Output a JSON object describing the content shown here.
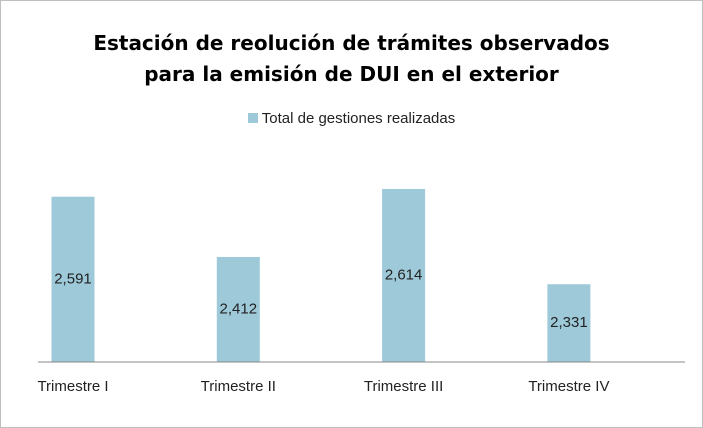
{
  "chart_data": {
    "type": "bar",
    "title": "Estación de reolución de trámites observados para la emisión de DUI en el exterior",
    "categories": [
      "Trimestre I",
      "Trimestre II",
      "Trimestre III",
      "Trimestre IV"
    ],
    "series": [
      {
        "name": "Total de gestiones realizadas",
        "color": "#9dc9d8",
        "values": [
          2591,
          2412,
          2614,
          2331
        ],
        "value_labels": [
          "2,591",
          "2,412",
          "2,614",
          "2,331"
        ]
      }
    ],
    "ylim": [
      2100,
      2700
    ]
  }
}
